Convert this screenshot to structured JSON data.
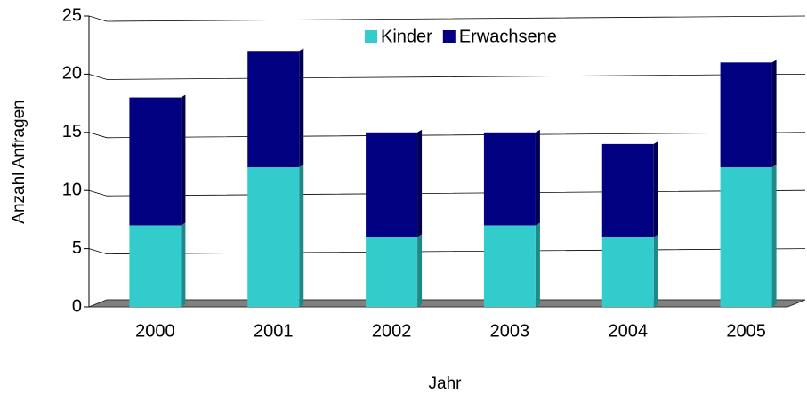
{
  "chart_data": {
    "type": "bar",
    "stacked": true,
    "x_label": "Jahr",
    "y_label": "Anzahl Anfragen",
    "categories": [
      "2000",
      "2001",
      "2002",
      "2003",
      "2004",
      "2005"
    ],
    "series": [
      {
        "name": "Kinder",
        "color": "#33cccc",
        "values": [
          7,
          12,
          6,
          7,
          6,
          12
        ]
      },
      {
        "name": "Erwachsene",
        "color": "#000080",
        "values": [
          11,
          10,
          9,
          8,
          8,
          9
        ]
      }
    ],
    "ylim": [
      0,
      25
    ],
    "yticks": [
      0,
      5,
      10,
      15,
      20,
      25
    ],
    "grid": true,
    "legend": "top"
  }
}
